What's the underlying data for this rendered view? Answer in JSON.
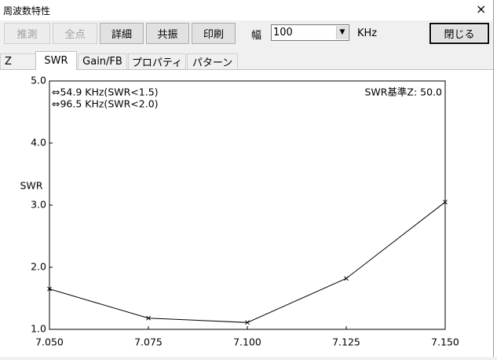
{
  "window": {
    "title": "周波数特性",
    "close": "×"
  },
  "toolbar": {
    "buttons": [
      "推測",
      "全点",
      "詳細",
      "共振",
      "印刷"
    ],
    "width_label": "幅",
    "width_value": "100",
    "width_unit": "KHz",
    "close_button": "閉じる"
  },
  "tabs": [
    "Z",
    "SWR",
    "Gain/FB",
    "プロパティ",
    "パターン"
  ],
  "chart_data": {
    "type": "line",
    "y_label": "SWR",
    "annotations": [
      "⇔54.9 KHz(SWR<1.5)",
      "⇔96.5 KHz(SWR<2.0)",
      "SWR基準Z: 50.0"
    ],
    "x": [
      7.05,
      7.075,
      7.1,
      7.125,
      7.15
    ],
    "series": [
      {
        "color": "#000000",
        "values": [
          1.65,
          1.18,
          1.11,
          1.82,
          3.05
        ]
      }
    ],
    "xlim": [
      7.05,
      7.15
    ],
    "xticks": [
      {
        "value": 7.05,
        "label": "7.050"
      },
      {
        "value": 7.075,
        "label": "7.075"
      },
      {
        "value": 7.1,
        "label": "7.100"
      },
      {
        "value": 7.125,
        "label": "7.125"
      },
      {
        "value": 7.15,
        "label": "7.150"
      }
    ],
    "ylim": [
      1,
      5
    ],
    "yticks": [
      {
        "value": 1,
        "label": "1.0"
      },
      {
        "value": 2,
        "label": "2.0"
      },
      {
        "value": 3,
        "label": "3.0"
      },
      {
        "value": 4,
        "label": "4.0"
      },
      {
        "value": 5,
        "label": "5.0"
      }
    ],
    "grid": false,
    "marker": "x"
  }
}
